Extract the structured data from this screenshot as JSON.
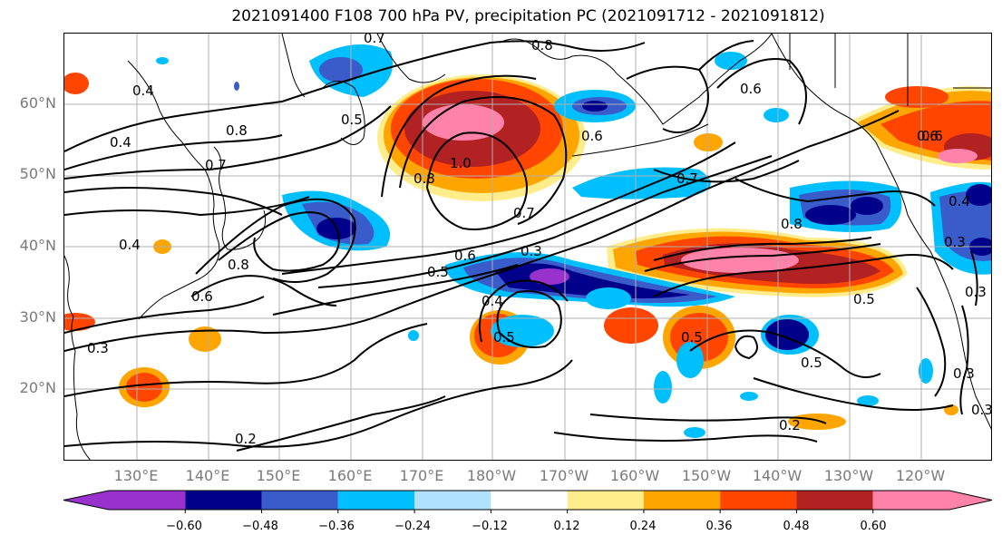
{
  "title": "2021091400 F108 700 hPa PV, precipitation PC (2021091712 - 2021091812)",
  "lat_labels": [
    "60°N",
    "50°N",
    "40°N",
    "30°N",
    "20°N"
  ],
  "lon_labels": [
    "130°E",
    "140°E",
    "150°E",
    "160°E",
    "170°E",
    "180°W",
    "170°W",
    "160°W",
    "150°W",
    "140°W",
    "130°W",
    "120°W"
  ],
  "colorbar": {
    "colors": [
      "#9932cc",
      "#00008b",
      "#3a5ccb",
      "#00bfff",
      "#b0e2ff",
      "#ffffff",
      "#ffec8b",
      "#ffa500",
      "#ff4500",
      "#b22222",
      "#ff82ab"
    ],
    "tick_labels": [
      "−0.60",
      "−0.48",
      "−0.36",
      "−0.24",
      "−0.12",
      "0.12",
      "0.24",
      "0.36",
      "0.48",
      "0.60"
    ]
  },
  "contour_labels": [
    "0.7",
    "0.8",
    "0.4",
    "0.8",
    "0.5",
    "0.4",
    "0.7",
    "0.6",
    "0.6",
    "0.6",
    "0.7",
    "0.8",
    "1.0",
    "0.8",
    "0.7",
    "0.4",
    "0.8",
    "0.6",
    "0.5",
    "0.6",
    "0.3",
    "0.3",
    "0.4",
    "0.5",
    "0.5",
    "0.5",
    "0.5",
    "0.2",
    "0.2",
    "0.3",
    "0.3",
    "0.4",
    "0.6",
    "0.3",
    "0.3"
  ]
}
